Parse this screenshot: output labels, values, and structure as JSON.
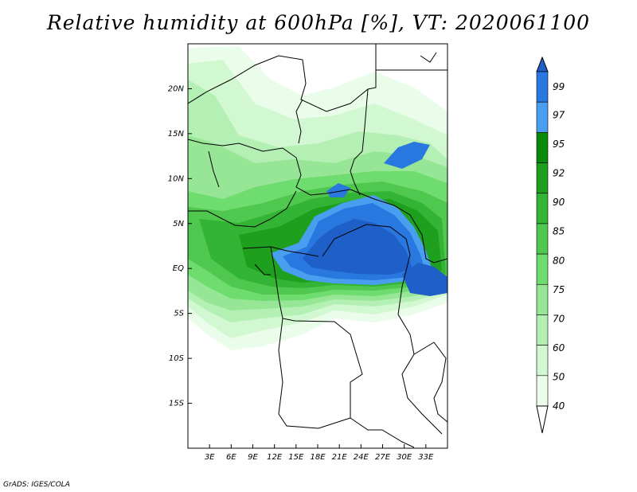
{
  "title": "Relative humidity at 600hPa [%], VT: 2020061100",
  "credit": "GrADS: IGES/COLA",
  "map": {
    "lon_range": [
      0,
      36
    ],
    "lat_range": [
      -20,
      25
    ],
    "x_ticks": [
      "3E",
      "6E",
      "9E",
      "12E",
      "15E",
      "18E",
      "21E",
      "24E",
      "27E",
      "30E",
      "33E"
    ],
    "y_ticks": [
      "20N",
      "15N",
      "10N",
      "5N",
      "EQ",
      "5S",
      "10S",
      "15S"
    ],
    "field": "relative humidity at 600hPa"
  },
  "colorbar": {
    "levels": [
      "99",
      "97",
      "95",
      "92",
      "90",
      "85",
      "80",
      "75",
      "70",
      "60",
      "50",
      "40"
    ],
    "colors": [
      "#1e5fc8",
      "#2878e0",
      "#4a9ef0",
      "#0a8a0a",
      "#1ea01e",
      "#34b434",
      "#50c850",
      "#6edc6e",
      "#96e696",
      "#b4f0b4",
      "#d2f8d2",
      "#eafcea",
      "#ffffff"
    ]
  }
}
